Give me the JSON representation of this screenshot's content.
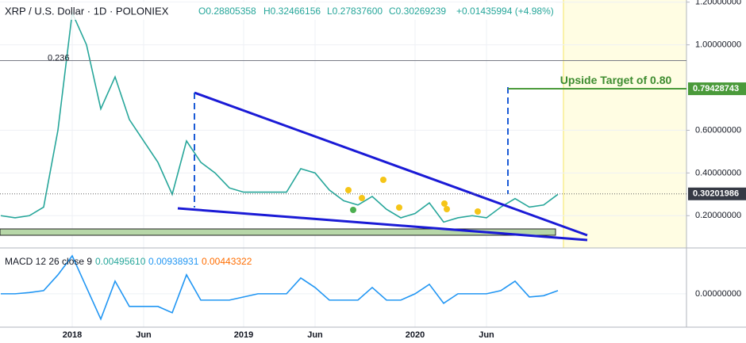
{
  "header": {
    "title": "XRP / U.S. Dollar · 1D · POLONIEX",
    "open": "O0.28805358",
    "high": "H0.32466156",
    "low": "L0.27837600",
    "close": "C0.30269239",
    "change": "+0.01435994 (+4.98%)"
  },
  "chart_data": [
    {
      "type": "line",
      "color": "#26a69a",
      "grid": true,
      "categories": [
        null,
        null,
        null,
        null,
        null,
        "2018",
        null,
        null,
        null,
        null,
        "Jun",
        null,
        null,
        null,
        null,
        null,
        null,
        "2019",
        null,
        null,
        null,
        null,
        "Jun",
        null,
        null,
        null,
        null,
        null,
        null,
        "2020",
        null,
        null,
        null,
        null,
        "Jun",
        null,
        null,
        null,
        null,
        null,
        null,
        null,
        null,
        null,
        null,
        null,
        null,
        null,
        null
      ],
      "values": [
        0.2,
        0.19,
        0.2,
        0.24,
        0.6,
        1.15,
        1.0,
        0.7,
        0.85,
        0.65,
        0.55,
        0.45,
        0.3,
        0.55,
        0.45,
        0.4,
        0.33,
        0.31,
        0.31,
        0.31,
        0.31,
        0.42,
        0.4,
        0.32,
        0.27,
        0.25,
        0.29,
        0.23,
        0.19,
        0.21,
        0.26,
        0.17,
        0.19,
        0.2,
        0.19,
        0.24,
        0.28,
        0.24,
        0.25,
        0.3,
        null,
        null,
        null,
        null,
        null,
        null,
        null,
        null,
        null
      ],
      "ylim": [
        0.06,
        1.21
      ],
      "yticks": [
        {
          "value": 0.2,
          "label": "0.20000000"
        },
        {
          "value": 0.4,
          "label": "0.40000000"
        },
        {
          "value": 0.6,
          "label": "0.60000000"
        },
        {
          "value": 1.0,
          "label": "1.00000000"
        },
        {
          "value": 1.2,
          "label": "1.20000000"
        }
      ],
      "annotations": [
        {
          "label": "0.236",
          "value": 0.926
        },
        {
          "label": "Upside Target of 0.80",
          "value": 0.79428743
        }
      ],
      "last_price": 0.30201986
    },
    {
      "type": "line",
      "color": "#2196f3",
      "legend": "MACD 12 26 close 9",
      "readouts": [
        {
          "text": "0.00495610",
          "color": "#26a69a"
        },
        {
          "text": "0.00938931",
          "color": "#2196f3"
        },
        {
          "text": "0.00443322",
          "color": "#ff6d00"
        }
      ],
      "values": [
        0,
        0,
        0.002,
        0.005,
        0.03,
        0.06,
        0.01,
        -0.04,
        0.02,
        -0.02,
        -0.02,
        -0.02,
        -0.03,
        0.03,
        -0.01,
        -0.01,
        -0.01,
        -0.005,
        0,
        0,
        0,
        0.025,
        0.01,
        -0.01,
        -0.01,
        -0.01,
        0.01,
        -0.01,
        -0.01,
        0,
        0.015,
        -0.015,
        0,
        0,
        0,
        0.005,
        0.02,
        -0.005,
        -0.003,
        0.005,
        null,
        null,
        null,
        null,
        null,
        null,
        null,
        null,
        null
      ],
      "ylim": [
        -0.049,
        0.07
      ],
      "yticks": [
        {
          "value": 0,
          "label": "0.00000000"
        }
      ]
    }
  ]
}
